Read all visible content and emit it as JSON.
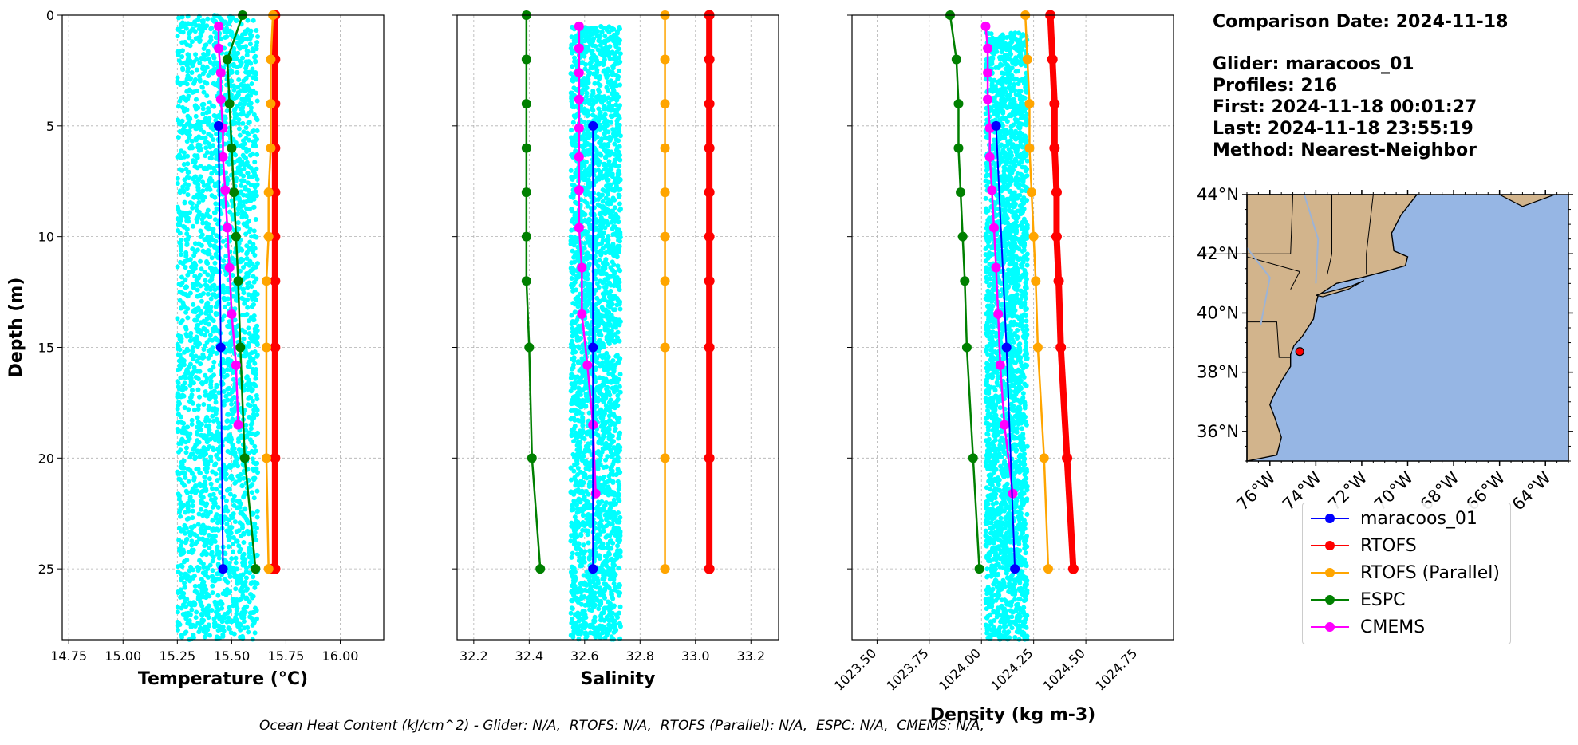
{
  "info": {
    "comparison_date": "Comparison Date: 2024-11-18",
    "glider": "Glider: maracoos_01",
    "profiles": "Profiles: 216",
    "first": "First: 2024-11-18 00:01:27",
    "last": "Last: 2024-11-18 23:55:19",
    "method": "Method: Nearest-Neighbor"
  },
  "footer": "Ocean Heat Content (kJ/cm^2) - Glider: N/A,  RTOFS: N/A,  RTOFS (Parallel): N/A,  ESPC: N/A,  CMEMS: N/A,",
  "legend": [
    {
      "label": "maracoos_01",
      "color": "#0000ff"
    },
    {
      "label": "RTOFS",
      "color": "#ff0000"
    },
    {
      "label": "RTOFS (Parallel)",
      "color": "#ffa500"
    },
    {
      "label": "ESPC",
      "color": "#008000"
    },
    {
      "label": "CMEMS",
      "color": "#ff00ff"
    }
  ],
  "colors": {
    "glider_scatter": "#00ffff",
    "glider": "#0000ff",
    "rtofs": "#ff0000",
    "rtofs_parallel": "#ffa500",
    "espc": "#008000",
    "cmems": "#ff00ff",
    "land": "#d2b48c",
    "ocean": "#96b6e4"
  },
  "chart_data": [
    {
      "type": "line",
      "xlabel": "Temperature (°C)",
      "ylabel": "Depth (m)",
      "xlim": [
        14.72,
        16.2
      ],
      "ylim": [
        28.2,
        0
      ],
      "xticks": [
        "14.75",
        "15.00",
        "15.25",
        "15.50",
        "15.75",
        "16.00"
      ],
      "yticks": [
        "0",
        "5",
        "10",
        "15",
        "20",
        "25"
      ],
      "grid": true,
      "glider_scatter": {
        "x_range": [
          15.25,
          15.62
        ],
        "depth_range": [
          0,
          28.2
        ],
        "note_color": "cyan"
      },
      "series": [
        {
          "name": "maracoos_01",
          "x": [
            15.44,
            15.45,
            15.46
          ],
          "depth": [
            5,
            15,
            25
          ]
        },
        {
          "name": "RTOFS",
          "x": [
            15.7,
            15.7,
            15.7,
            15.7,
            15.7,
            15.7,
            15.7,
            15.7,
            15.7,
            15.7,
            15.7,
            15.69,
            15.69
          ],
          "depth": [
            0,
            2,
            4,
            6,
            8,
            10,
            12,
            15,
            20,
            25,
            25,
            25,
            25
          ]
        },
        {
          "name": "RTOFS (Parallel)",
          "x": [
            15.69,
            15.68,
            15.68,
            15.68,
            15.67,
            15.67,
            15.66,
            15.66,
            15.66,
            15.67
          ],
          "depth": [
            0,
            2,
            4,
            6,
            8,
            10,
            12,
            15,
            20,
            25
          ]
        },
        {
          "name": "ESPC",
          "x": [
            15.55,
            15.48,
            15.49,
            15.5,
            15.51,
            15.52,
            15.53,
            15.54,
            15.56,
            15.61
          ],
          "depth": [
            0,
            2,
            4,
            6,
            8,
            10,
            12,
            15,
            20,
            25
          ]
        },
        {
          "name": "CMEMS",
          "x": [
            15.44,
            15.44,
            15.45,
            15.45,
            15.46,
            15.46,
            15.47,
            15.48,
            15.49,
            15.5,
            15.52,
            15.53
          ],
          "depth": [
            0.5,
            1.5,
            2.6,
            3.8,
            5.1,
            6.4,
            7.9,
            9.6,
            11.4,
            13.5,
            15.8,
            18.5
          ]
        }
      ]
    },
    {
      "type": "line",
      "xlabel": "Salinity",
      "xlim": [
        32.14,
        33.3
      ],
      "ylim": [
        28.2,
        0
      ],
      "xticks": [
        "32.2",
        "32.4",
        "32.6",
        "32.8",
        "33.0",
        "33.2"
      ],
      "grid": true,
      "glider_scatter": {
        "x_range": [
          32.55,
          32.73
        ],
        "depth_range": [
          0.5,
          28.2
        ],
        "note_color": "cyan"
      },
      "series": [
        {
          "name": "maracoos_01",
          "x": [
            32.63,
            32.63,
            32.63
          ],
          "depth": [
            5,
            15,
            25
          ]
        },
        {
          "name": "RTOFS",
          "x": [
            33.05,
            33.05,
            33.05,
            33.05,
            33.05,
            33.05,
            33.05,
            33.05,
            33.05,
            33.05
          ],
          "depth": [
            0,
            2,
            4,
            6,
            8,
            10,
            12,
            15,
            20,
            25
          ]
        },
        {
          "name": "RTOFS (Parallel)",
          "x": [
            32.89,
            32.89,
            32.89,
            32.89,
            32.89,
            32.89,
            32.89,
            32.89,
            32.89,
            32.89
          ],
          "depth": [
            0,
            2,
            4,
            6,
            8,
            10,
            12,
            15,
            20,
            25
          ]
        },
        {
          "name": "ESPC",
          "x": [
            32.39,
            32.39,
            32.39,
            32.39,
            32.39,
            32.39,
            32.39,
            32.4,
            32.41,
            32.44
          ],
          "depth": [
            0,
            2,
            4,
            6,
            8,
            10,
            12,
            15,
            20,
            25
          ]
        },
        {
          "name": "CMEMS",
          "x": [
            32.58,
            32.58,
            32.58,
            32.58,
            32.58,
            32.58,
            32.58,
            32.58,
            32.59,
            32.59,
            32.61,
            32.63,
            32.64
          ],
          "depth": [
            0.5,
            1.5,
            2.6,
            3.8,
            5.1,
            6.4,
            7.9,
            9.6,
            11.4,
            13.5,
            15.8,
            18.5,
            21.6
          ]
        }
      ]
    },
    {
      "type": "line",
      "xlabel": "Density (kg m-3)",
      "xlim": [
        1023.38,
        1024.92
      ],
      "ylim": [
        28.2,
        0
      ],
      "xticks": [
        "1023.50",
        "1023.75",
        "1024.00",
        "1024.25",
        "1024.50",
        "1024.75"
      ],
      "grid": true,
      "glider_scatter": {
        "x_range": [
          1024.02,
          1024.22
        ],
        "depth_range": [
          0.8,
          28.2
        ],
        "note_color": "cyan"
      },
      "series": [
        {
          "name": "maracoos_01",
          "x": [
            1024.07,
            1024.12,
            1024.16
          ],
          "depth": [
            5,
            15,
            25
          ]
        },
        {
          "name": "RTOFS",
          "x": [
            1024.33,
            1024.34,
            1024.35,
            1024.35,
            1024.36,
            1024.36,
            1024.37,
            1024.38,
            1024.41,
            1024.44
          ],
          "depth": [
            0,
            2,
            4,
            6,
            8,
            10,
            12,
            15,
            20,
            25
          ]
        },
        {
          "name": "RTOFS (Parallel)",
          "x": [
            1024.21,
            1024.22,
            1024.23,
            1024.23,
            1024.24,
            1024.25,
            1024.26,
            1024.27,
            1024.3,
            1024.32
          ],
          "depth": [
            0,
            2,
            4,
            6,
            8,
            10,
            12,
            15,
            20,
            25
          ]
        },
        {
          "name": "ESPC",
          "x": [
            1023.85,
            1023.88,
            1023.89,
            1023.89,
            1023.9,
            1023.91,
            1023.92,
            1023.93,
            1023.96,
            1023.99
          ],
          "depth": [
            0,
            2,
            4,
            6,
            8,
            10,
            12,
            15,
            20,
            25
          ]
        },
        {
          "name": "CMEMS",
          "x": [
            1024.02,
            1024.03,
            1024.03,
            1024.03,
            1024.04,
            1024.04,
            1024.05,
            1024.06,
            1024.07,
            1024.08,
            1024.09,
            1024.11,
            1024.15
          ],
          "depth": [
            0.5,
            1.5,
            2.6,
            3.8,
            5.1,
            6.4,
            7.9,
            9.6,
            11.4,
            13.5,
            15.8,
            18.5,
            21.6
          ]
        }
      ]
    }
  ],
  "map": {
    "lon_ticks": [
      "76°W",
      "74°W",
      "72°W",
      "70°W",
      "68°W",
      "66°W",
      "64°W"
    ],
    "lat_ticks": [
      "44°N",
      "42°N",
      "40°N",
      "38°N",
      "36°N"
    ],
    "lon_range": [
      -77,
      -63
    ],
    "lat_range": [
      35,
      44
    ],
    "glider_position": {
      "lon": -74.7,
      "lat": 38.7
    }
  }
}
